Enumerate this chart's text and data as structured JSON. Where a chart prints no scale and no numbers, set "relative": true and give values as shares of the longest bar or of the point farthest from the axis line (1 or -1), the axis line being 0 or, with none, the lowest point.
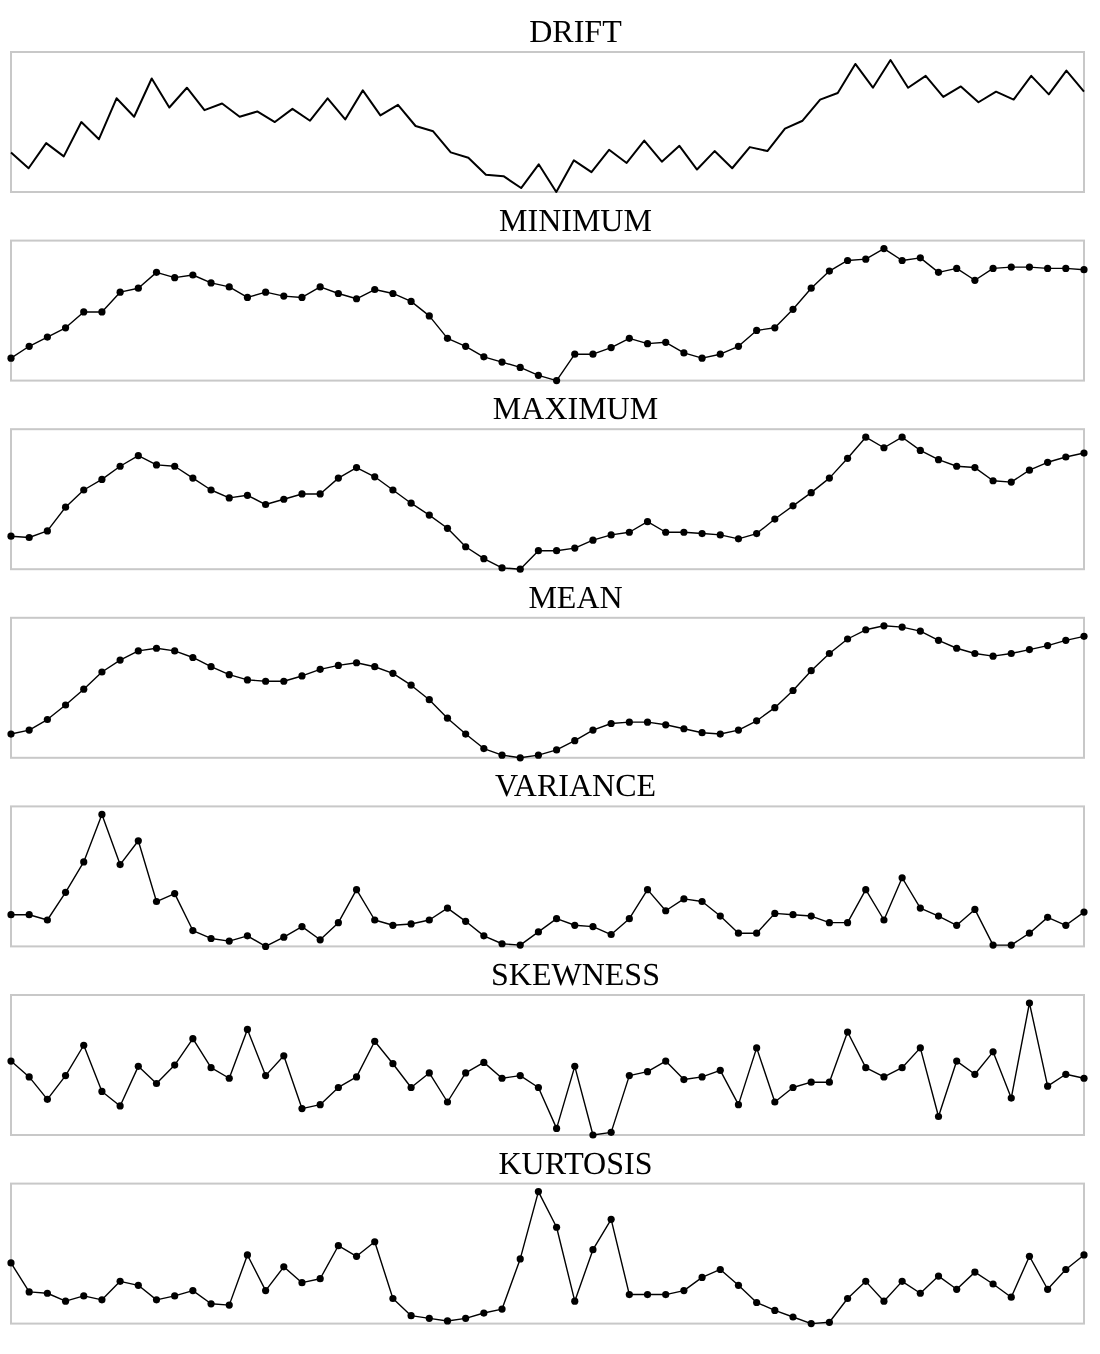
{
  "chart_data": [
    {
      "type": "line",
      "title": "DRIFT",
      "relative": true,
      "marker": "none",
      "categories": [
        null,
        null,
        null,
        null,
        null,
        null,
        null,
        null,
        null,
        null,
        null,
        null,
        null,
        null,
        null,
        null,
        null,
        null,
        null,
        null,
        null,
        null,
        null,
        null,
        null,
        null,
        null,
        null,
        null,
        null,
        null,
        null,
        null,
        null,
        null,
        null,
        null,
        null,
        null,
        null,
        null,
        null,
        null,
        null,
        null,
        null,
        null,
        null,
        null,
        null,
        null,
        null,
        null,
        null,
        null,
        null,
        null,
        null,
        null,
        null,
        null,
        null
      ],
      "series": [
        {
          "color": "#000000",
          "values": [
            0.3,
            0.18,
            0.37,
            0.27,
            0.53,
            0.4,
            0.71,
            0.57,
            0.86,
            0.64,
            0.79,
            0.62,
            0.67,
            0.57,
            0.61,
            0.53,
            0.63,
            0.54,
            0.71,
            0.55,
            0.77,
            0.58,
            0.66,
            0.5,
            0.46,
            0.3,
            0.26,
            0.13,
            0.12,
            0.03,
            0.21,
            0,
            0.24,
            0.15,
            0.32,
            0.22,
            0.39,
            0.23,
            0.35,
            0.17,
            0.31,
            0.18,
            0.34,
            0.31,
            0.48,
            0.54,
            0.7,
            0.75,
            0.97,
            0.79,
            1,
            0.79,
            0.88,
            0.72,
            0.8,
            0.68,
            0.76,
            0.7,
            0.88,
            0.74,
            0.92,
            0.76
          ]
        }
      ]
    },
    {
      "type": "line",
      "title": "MINIMUM",
      "relative": true,
      "marker": "circle",
      "categories": [
        null,
        null,
        null,
        null,
        null,
        null,
        null,
        null,
        null,
        null,
        null,
        null,
        null,
        null,
        null,
        null,
        null,
        null,
        null,
        null,
        null,
        null,
        null,
        null,
        null,
        null,
        null,
        null,
        null,
        null,
        null,
        null,
        null,
        null,
        null,
        null,
        null,
        null,
        null,
        null,
        null,
        null,
        null,
        null,
        null,
        null,
        null,
        null,
        null,
        null,
        null,
        null,
        null,
        null,
        null,
        null,
        null,
        null,
        null,
        null
      ],
      "series": [
        {
          "color": "#000000",
          "values": [
            0.17,
            0.26,
            0.33,
            0.4,
            0.52,
            0.52,
            0.67,
            0.7,
            0.82,
            0.78,
            0.8,
            0.74,
            0.71,
            0.63,
            0.67,
            0.64,
            0.63,
            0.71,
            0.66,
            0.62,
            0.69,
            0.66,
            0.6,
            0.49,
            0.32,
            0.26,
            0.18,
            0.14,
            0.1,
            0.04,
            0,
            0.2,
            0.2,
            0.25,
            0.32,
            0.28,
            0.29,
            0.21,
            0.17,
            0.2,
            0.26,
            0.38,
            0.4,
            0.54,
            0.7,
            0.83,
            0.91,
            0.92,
            1,
            0.91,
            0.93,
            0.82,
            0.85,
            0.76,
            0.85,
            0.86,
            0.86,
            0.85,
            0.85,
            0.84
          ]
        }
      ]
    },
    {
      "type": "line",
      "title": "MAXIMUM",
      "relative": true,
      "marker": "circle",
      "categories": [
        null,
        null,
        null,
        null,
        null,
        null,
        null,
        null,
        null,
        null,
        null,
        null,
        null,
        null,
        null,
        null,
        null,
        null,
        null,
        null,
        null,
        null,
        null,
        null,
        null,
        null,
        null,
        null,
        null,
        null,
        null,
        null,
        null,
        null,
        null,
        null,
        null,
        null,
        null,
        null,
        null,
        null,
        null,
        null,
        null,
        null,
        null,
        null,
        null,
        null,
        null,
        null,
        null,
        null,
        null,
        null,
        null,
        null,
        null,
        null
      ],
      "series": [
        {
          "color": "#000000",
          "values": [
            0.25,
            0.24,
            0.29,
            0.47,
            0.6,
            0.68,
            0.78,
            0.86,
            0.79,
            0.78,
            0.69,
            0.6,
            0.54,
            0.56,
            0.49,
            0.53,
            0.57,
            0.57,
            0.69,
            0.77,
            0.7,
            0.6,
            0.5,
            0.41,
            0.31,
            0.17,
            0.08,
            0.01,
            0,
            0.14,
            0.14,
            0.16,
            0.22,
            0.26,
            0.28,
            0.36,
            0.28,
            0.28,
            0.27,
            0.26,
            0.23,
            0.27,
            0.38,
            0.48,
            0.58,
            0.69,
            0.84,
            1,
            0.92,
            1,
            0.9,
            0.83,
            0.78,
            0.77,
            0.67,
            0.66,
            0.75,
            0.81,
            0.85,
            0.88
          ]
        }
      ]
    },
    {
      "type": "line",
      "title": "MEAN",
      "relative": true,
      "marker": "circle",
      "categories": [
        null,
        null,
        null,
        null,
        null,
        null,
        null,
        null,
        null,
        null,
        null,
        null,
        null,
        null,
        null,
        null,
        null,
        null,
        null,
        null,
        null,
        null,
        null,
        null,
        null,
        null,
        null,
        null,
        null,
        null,
        null,
        null,
        null,
        null,
        null,
        null,
        null,
        null,
        null,
        null,
        null,
        null,
        null,
        null,
        null,
        null,
        null,
        null,
        null,
        null,
        null,
        null,
        null,
        null,
        null,
        null,
        null,
        null,
        null,
        null
      ],
      "series": [
        {
          "color": "#000000",
          "values": [
            0.18,
            0.21,
            0.29,
            0.4,
            0.52,
            0.65,
            0.74,
            0.81,
            0.83,
            0.81,
            0.76,
            0.69,
            0.63,
            0.59,
            0.58,
            0.58,
            0.62,
            0.67,
            0.7,
            0.72,
            0.69,
            0.64,
            0.55,
            0.44,
            0.3,
            0.18,
            0.07,
            0.02,
            0,
            0.02,
            0.06,
            0.13,
            0.21,
            0.26,
            0.27,
            0.27,
            0.25,
            0.22,
            0.19,
            0.18,
            0.21,
            0.28,
            0.38,
            0.51,
            0.66,
            0.79,
            0.9,
            0.97,
            1,
            0.99,
            0.96,
            0.89,
            0.83,
            0.79,
            0.77,
            0.79,
            0.82,
            0.85,
            0.89,
            0.92
          ]
        }
      ]
    },
    {
      "type": "line",
      "title": "VARIANCE",
      "relative": true,
      "marker": "circle",
      "categories": [
        null,
        null,
        null,
        null,
        null,
        null,
        null,
        null,
        null,
        null,
        null,
        null,
        null,
        null,
        null,
        null,
        null,
        null,
        null,
        null,
        null,
        null,
        null,
        null,
        null,
        null,
        null,
        null,
        null,
        null,
        null,
        null,
        null,
        null,
        null,
        null,
        null,
        null,
        null,
        null,
        null,
        null,
        null,
        null,
        null,
        null,
        null,
        null,
        null,
        null,
        null,
        null,
        null,
        null,
        null,
        null,
        null,
        null,
        null,
        null
      ],
      "series": [
        {
          "color": "#000000",
          "values": [
            0.24,
            0.24,
            0.2,
            0.41,
            0.64,
            1,
            0.62,
            0.8,
            0.34,
            0.4,
            0.12,
            0.06,
            0.04,
            0.08,
            0,
            0.07,
            0.15,
            0.05,
            0.18,
            0.43,
            0.2,
            0.16,
            0.17,
            0.2,
            0.29,
            0.19,
            0.08,
            0.02,
            0.01,
            0.11,
            0.21,
            0.16,
            0.15,
            0.09,
            0.21,
            0.43,
            0.27,
            0.36,
            0.34,
            0.23,
            0.1,
            0.1,
            0.25,
            0.24,
            0.23,
            0.18,
            0.18,
            0.43,
            0.2,
            0.52,
            0.29,
            0.23,
            0.16,
            0.28,
            0.01,
            0.01,
            0.1,
            0.22,
            0.16,
            0.26
          ]
        }
      ]
    },
    {
      "type": "line",
      "title": "SKEWNESS",
      "relative": true,
      "marker": "circle",
      "categories": [
        null,
        null,
        null,
        null,
        null,
        null,
        null,
        null,
        null,
        null,
        null,
        null,
        null,
        null,
        null,
        null,
        null,
        null,
        null,
        null,
        null,
        null,
        null,
        null,
        null,
        null,
        null,
        null,
        null,
        null,
        null,
        null,
        null,
        null,
        null,
        null,
        null,
        null,
        null,
        null,
        null,
        null,
        null,
        null,
        null,
        null,
        null,
        null,
        null,
        null,
        null,
        null,
        null,
        null,
        null,
        null,
        null,
        null,
        null,
        null
      ],
      "series": [
        {
          "color": "#000000",
          "values": [
            0.56,
            0.44,
            0.27,
            0.45,
            0.68,
            0.33,
            0.22,
            0.52,
            0.39,
            0.53,
            0.73,
            0.51,
            0.43,
            0.8,
            0.45,
            0.6,
            0.2,
            0.23,
            0.36,
            0.44,
            0.71,
            0.54,
            0.36,
            0.47,
            0.25,
            0.47,
            0.55,
            0.43,
            0.45,
            0.36,
            0.05,
            0.52,
            0,
            0.02,
            0.45,
            0.48,
            0.56,
            0.42,
            0.44,
            0.49,
            0.23,
            0.66,
            0.25,
            0.36,
            0.4,
            0.4,
            0.78,
            0.51,
            0.44,
            0.51,
            0.66,
            0.14,
            0.56,
            0.46,
            0.63,
            0.28,
            1,
            0.37,
            0.46,
            0.43
          ]
        }
      ]
    },
    {
      "type": "line",
      "title": "KURTOSIS",
      "relative": true,
      "marker": "circle",
      "categories": [
        null,
        null,
        null,
        null,
        null,
        null,
        null,
        null,
        null,
        null,
        null,
        null,
        null,
        null,
        null,
        null,
        null,
        null,
        null,
        null,
        null,
        null,
        null,
        null,
        null,
        null,
        null,
        null,
        null,
        null,
        null,
        null,
        null,
        null,
        null,
        null,
        null,
        null,
        null,
        null,
        null,
        null,
        null,
        null,
        null,
        null,
        null,
        null,
        null,
        null,
        null,
        null,
        null,
        null,
        null,
        null,
        null,
        null,
        null,
        null
      ],
      "series": [
        {
          "color": "#000000",
          "values": [
            0.46,
            0.24,
            0.23,
            0.17,
            0.21,
            0.18,
            0.32,
            0.29,
            0.18,
            0.21,
            0.25,
            0.15,
            0.14,
            0.52,
            0.25,
            0.43,
            0.31,
            0.34,
            0.59,
            0.51,
            0.62,
            0.19,
            0.06,
            0.04,
            0.02,
            0.04,
            0.08,
            0.11,
            0.49,
            1,
            0.73,
            0.17,
            0.56,
            0.79,
            0.22,
            0.22,
            0.22,
            0.25,
            0.35,
            0.41,
            0.29,
            0.16,
            0.1,
            0.05,
            0,
            0.01,
            0.19,
            0.32,
            0.17,
            0.32,
            0.23,
            0.36,
            0.26,
            0.39,
            0.3,
            0.2,
            0.51,
            0.26,
            0.41,
            0.52
          ]
        }
      ]
    }
  ]
}
